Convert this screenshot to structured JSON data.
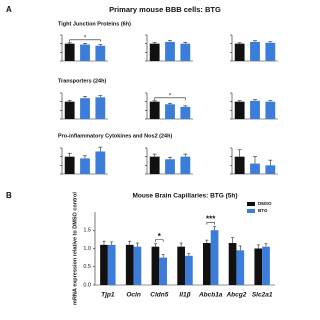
{
  "panel_labels": [
    "A",
    "B"
  ],
  "panel_a_title": "Primary mouse BBB cells: BTG",
  "row_titles": [
    "Tight Junction Proteins (6h)",
    "Transporters (24h)",
    "Pro-inflammatory Cytokines and Nos2 (24h)"
  ],
  "chart_data": [
    {
      "type": "bar",
      "categories": [
        null,
        null,
        null
      ],
      "values": [
        1.0,
        0.95,
        0.88
      ],
      "errors": [
        0.05,
        0.06,
        0.07
      ],
      "colors": [
        "#111111",
        "#3b7dd8",
        "#3b7dd8"
      ],
      "ylim": [
        0,
        1.5
      ],
      "yticks": [
        0,
        0.5,
        1,
        1.5
      ],
      "annotations": [
        {
          "text": "*"
        }
      ]
    },
    {
      "type": "bar",
      "categories": [
        null,
        null,
        null
      ],
      "values": [
        1.0,
        1.1,
        1.0
      ],
      "errors": [
        0.06,
        0.08,
        0.07
      ],
      "colors": [
        "#111111",
        "#3b7dd8",
        "#3b7dd8"
      ],
      "ylim": [
        0,
        1.5
      ],
      "yticks": [
        0,
        0.5,
        1,
        1.5
      ]
    },
    {
      "type": "bar",
      "categories": [
        null,
        null,
        null
      ],
      "values": [
        1.0,
        1.1,
        1.05
      ],
      "errors": [
        0.05,
        0.07,
        0.06
      ],
      "colors": [
        "#111111",
        "#3b7dd8",
        "#3b7dd8"
      ],
      "ylim": [
        0,
        1.5
      ],
      "yticks": [
        0,
        0.5,
        1,
        1.5
      ]
    },
    {
      "type": "bar",
      "categories": [
        null,
        null,
        null
      ],
      "values": [
        1.0,
        1.2,
        1.25
      ],
      "errors": [
        0.08,
        0.1,
        0.1
      ],
      "colors": [
        "#111111",
        "#3b7dd8",
        "#3b7dd8"
      ],
      "ylim": [
        0,
        1.5
      ],
      "yticks": [
        0,
        0.5,
        1,
        1.5
      ]
    },
    {
      "type": "bar",
      "categories": [
        null,
        null,
        null
      ],
      "values": [
        1.0,
        0.85,
        0.7
      ],
      "errors": [
        0.05,
        0.06,
        0.06
      ],
      "colors": [
        "#111111",
        "#3b7dd8",
        "#3b7dd8"
      ],
      "ylim": [
        0,
        1.5
      ],
      "yticks": [
        0,
        0.5,
        1,
        1.5
      ],
      "annotations": [
        {
          "text": "*"
        }
      ]
    },
    {
      "type": "bar",
      "categories": [
        null,
        null,
        null
      ],
      "values": [
        1.0,
        1.05,
        1.0
      ],
      "errors": [
        0.06,
        0.07,
        0.06
      ],
      "colors": [
        "#111111",
        "#3b7dd8",
        "#3b7dd8"
      ],
      "ylim": [
        0,
        1.5
      ],
      "yticks": [
        0,
        0.5,
        1,
        1.5
      ]
    },
    {
      "type": "bar",
      "categories": [
        null,
        null,
        null
      ],
      "values": [
        1.0,
        0.9,
        1.3
      ],
      "errors": [
        0.2,
        0.15,
        0.25
      ],
      "colors": [
        "#111111",
        "#3b7dd8",
        "#3b7dd8"
      ],
      "ylim": [
        0,
        1.5
      ],
      "yticks": [
        0,
        0.5,
        1,
        1.5
      ]
    },
    {
      "type": "bar",
      "categories": [
        null,
        null,
        null
      ],
      "values": [
        1.0,
        0.85,
        1.0
      ],
      "errors": [
        0.15,
        0.12,
        0.15
      ],
      "colors": [
        "#111111",
        "#3b7dd8",
        "#3b7dd8"
      ],
      "ylim": [
        0,
        1.5
      ],
      "yticks": [
        0,
        0.5,
        1,
        1.5
      ]
    },
    {
      "type": "bar",
      "categories": [
        null,
        null,
        null
      ],
      "values": [
        1.0,
        0.6,
        0.5
      ],
      "errors": [
        0.4,
        0.4,
        0.3
      ],
      "colors": [
        "#111111",
        "#3b7dd8",
        "#3b7dd8"
      ],
      "ylim": [
        0,
        1.5
      ],
      "yticks": [
        0,
        0.5,
        1,
        1.5
      ]
    },
    {
      "type": "grouped-bar",
      "title": "Mouse Brain Capillaries: BTG (5h)",
      "y_label": "mRNA expression relative to DMSO control",
      "categories": [
        "Tjp1",
        "Ocln",
        "Cldn5",
        "Il1β",
        "Abcb1a",
        "Abcg2",
        "Slc2a1"
      ],
      "series": [
        {
          "name": "DMSO",
          "color": "#111111",
          "values": [
            1.1,
            1.1,
            1.05,
            1.05,
            1.15,
            1.15,
            1.0
          ],
          "errors": [
            0.1,
            0.1,
            0.08,
            0.1,
            0.08,
            0.15,
            0.1
          ]
        },
        {
          "name": "BTG",
          "color": "#3b7dd8",
          "values": [
            1.1,
            1.05,
            0.75,
            0.8,
            1.5,
            0.95,
            1.05
          ],
          "errors": [
            0.08,
            0.1,
            0.08,
            0.06,
            0.1,
            0.12,
            0.08
          ]
        }
      ],
      "ylim": [
        0,
        2.0
      ],
      "yticks": [
        {
          "value": 0,
          "label": "0.0"
        },
        {
          "value": 0.5,
          "label": "0.5"
        },
        {
          "value": 1,
          "label": "1.0"
        },
        {
          "value": 1.5,
          "label": "1.5"
        }
      ],
      "annotations": [
        {
          "text": "*",
          "category": "Cldn5"
        },
        {
          "text": "***",
          "category": "Abcb1a"
        }
      ],
      "legend": "top-right"
    }
  ]
}
